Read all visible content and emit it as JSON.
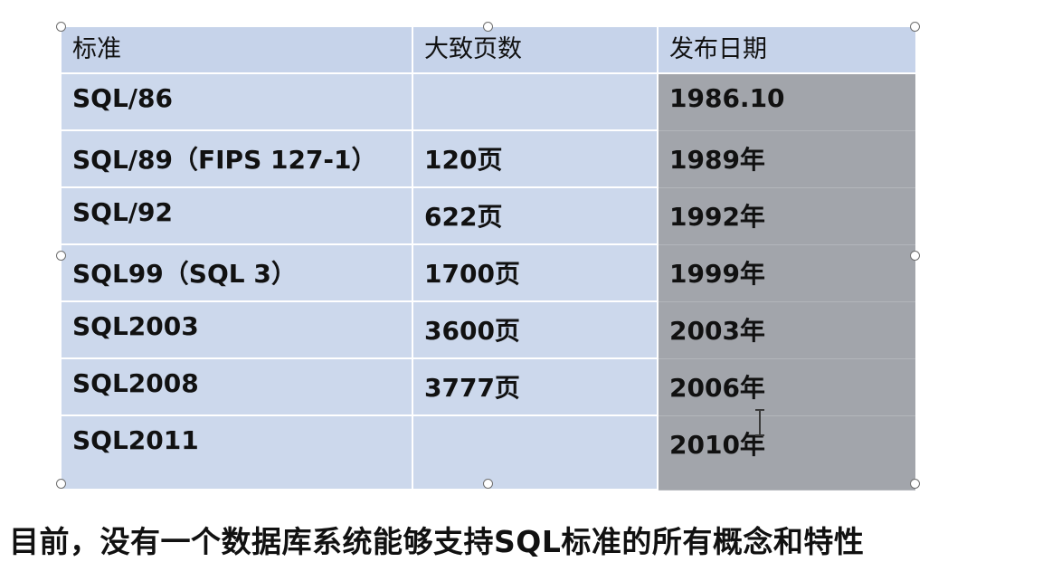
{
  "table": {
    "headers": [
      "标准",
      "大致页数",
      "发布日期"
    ],
    "rows": [
      {
        "standard": "SQL/86",
        "pages": "",
        "date": "1986.10"
      },
      {
        "standard": "SQL/89（FIPS 127-1）",
        "pages": "120页",
        "date": "1989年"
      },
      {
        "standard": "SQL/92",
        "pages": "622页",
        "date": "1992年"
      },
      {
        "standard": "SQL99（SQL 3）",
        "pages": "1700页",
        "date": "1999年"
      },
      {
        "standard": "SQL2003",
        "pages": "3600页",
        "date": "2003年"
      },
      {
        "standard": "SQL2008",
        "pages": "3777页",
        "date": "2006年"
      },
      {
        "standard": "SQL2011",
        "pages": "",
        "date": "2010年"
      }
    ]
  },
  "caption": "目前，没有一个数据库系统能够支持SQL标准的所有概念和特性",
  "colors": {
    "header_bg": "#c6d3ea",
    "cell_bg": "#ccd8ec",
    "selected_col_bg": "#a2a5ab"
  },
  "icons": {
    "handle": "resize-handle-circle",
    "cursor": "i-beam-text-cursor"
  }
}
